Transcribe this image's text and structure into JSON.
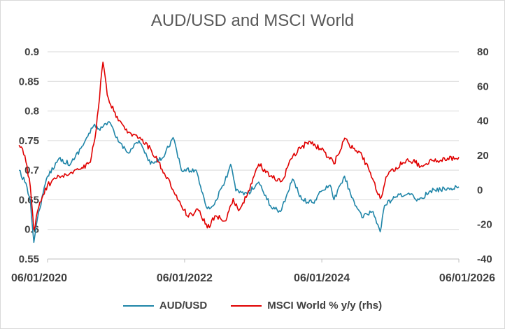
{
  "chart_data": {
    "type": "line",
    "title": "AUD/USD and MSCI World",
    "x_ticks": [
      "06/01/2020",
      "06/01/2022",
      "06/01/2024",
      "06/01/2026"
    ],
    "y_left": {
      "min": 0.55,
      "max": 0.9,
      "step": 0.05,
      "ticks": [
        "0.55",
        "0.6",
        "0.65",
        "0.7",
        "0.75",
        "0.8",
        "0.85",
        "0.9"
      ]
    },
    "y_right": {
      "min": -40,
      "max": 80,
      "step": 20,
      "ticks": [
        "-40",
        "-20",
        "0",
        "20",
        "40",
        "60",
        "80"
      ]
    },
    "grid": "horizontal",
    "legend_position": "bottom",
    "series": [
      {
        "name": "AUD/USD",
        "axis": "left",
        "color": "#1f85a8",
        "points": [
          [
            "2020-01-01",
            0.7
          ],
          [
            "2020-02-01",
            0.68
          ],
          [
            "2020-03-01",
            0.65
          ],
          [
            "2020-03-20",
            0.578
          ],
          [
            "2020-04-15",
            0.63
          ],
          [
            "2020-06-01",
            0.69
          ],
          [
            "2020-08-01",
            0.72
          ],
          [
            "2020-10-01",
            0.71
          ],
          [
            "2020-12-01",
            0.74
          ],
          [
            "2021-02-01",
            0.775
          ],
          [
            "2021-03-01",
            0.77
          ],
          [
            "2021-05-01",
            0.78
          ],
          [
            "2021-06-01",
            0.755
          ],
          [
            "2021-08-01",
            0.73
          ],
          [
            "2021-10-01",
            0.75
          ],
          [
            "2021-12-01",
            0.71
          ],
          [
            "2022-02-01",
            0.72
          ],
          [
            "2022-04-01",
            0.755
          ],
          [
            "2022-05-15",
            0.7
          ],
          [
            "2022-08-01",
            0.7
          ],
          [
            "2022-09-30",
            0.635
          ],
          [
            "2022-11-01",
            0.64
          ],
          [
            "2023-01-01",
            0.68
          ],
          [
            "2023-02-01",
            0.71
          ],
          [
            "2023-03-01",
            0.665
          ],
          [
            "2023-05-01",
            0.66
          ],
          [
            "2023-07-01",
            0.68
          ],
          [
            "2023-09-01",
            0.64
          ],
          [
            "2023-10-25",
            0.63
          ],
          [
            "2023-12-28",
            0.685
          ],
          [
            "2024-02-15",
            0.65
          ],
          [
            "2024-04-15",
            0.645
          ],
          [
            "2024-06-01",
            0.665
          ],
          [
            "2024-07-15",
            0.675
          ],
          [
            "2024-08-05",
            0.65
          ],
          [
            "2024-09-30",
            0.69
          ],
          [
            "2024-11-01",
            0.66
          ],
          [
            "2025-01-01",
            0.62
          ],
          [
            "2025-02-01",
            0.625
          ],
          [
            "2025-03-01",
            0.63
          ],
          [
            "2025-04-08",
            0.596
          ],
          [
            "2025-05-01",
            0.64
          ],
          [
            "2025-07-01",
            0.655
          ],
          [
            "2025-09-01",
            0.66
          ],
          [
            "2025-11-01",
            0.65
          ],
          [
            "2026-01-01",
            0.665
          ],
          [
            "2026-06-01",
            0.672
          ]
        ]
      },
      {
        "name": "MSCI World % y/y (rhs)",
        "axis": "right",
        "color": "#e00000",
        "points": [
          [
            "2020-01-01",
            26
          ],
          [
            "2020-02-01",
            20
          ],
          [
            "2020-03-01",
            2
          ],
          [
            "2020-03-20",
            -23
          ],
          [
            "2020-04-15",
            -10
          ],
          [
            "2020-06-01",
            3
          ],
          [
            "2020-08-01",
            8
          ],
          [
            "2020-10-01",
            10
          ],
          [
            "2020-12-01",
            13
          ],
          [
            "2021-01-15",
            16
          ],
          [
            "2021-02-15",
            35
          ],
          [
            "2021-03-23",
            74
          ],
          [
            "2021-04-15",
            55
          ],
          [
            "2021-06-01",
            42
          ],
          [
            "2021-08-01",
            33
          ],
          [
            "2021-10-01",
            30
          ],
          [
            "2021-12-01",
            24
          ],
          [
            "2022-02-01",
            12
          ],
          [
            "2022-04-01",
            0
          ],
          [
            "2022-06-15",
            -15
          ],
          [
            "2022-08-15",
            -12
          ],
          [
            "2022-09-30",
            -22
          ],
          [
            "2022-11-15",
            -15
          ],
          [
            "2023-01-01",
            -18
          ],
          [
            "2023-02-15",
            -5
          ],
          [
            "2023-03-15",
            -12
          ],
          [
            "2023-05-01",
            -3
          ],
          [
            "2023-07-01",
            15
          ],
          [
            "2023-09-01",
            8
          ],
          [
            "2023-10-31",
            5
          ],
          [
            "2023-12-31",
            20
          ],
          [
            "2024-02-15",
            25
          ],
          [
            "2024-03-31",
            28
          ],
          [
            "2024-06-15",
            22
          ],
          [
            "2024-08-05",
            15
          ],
          [
            "2024-10-01",
            30
          ],
          [
            "2024-11-15",
            24
          ],
          [
            "2025-01-01",
            20
          ],
          [
            "2025-02-15",
            10
          ],
          [
            "2025-04-08",
            -5
          ],
          [
            "2025-05-15",
            8
          ],
          [
            "2025-07-01",
            13
          ],
          [
            "2025-09-01",
            18
          ],
          [
            "2025-11-15",
            14
          ],
          [
            "2026-01-15",
            17
          ],
          [
            "2026-06-01",
            19
          ]
        ]
      }
    ]
  }
}
